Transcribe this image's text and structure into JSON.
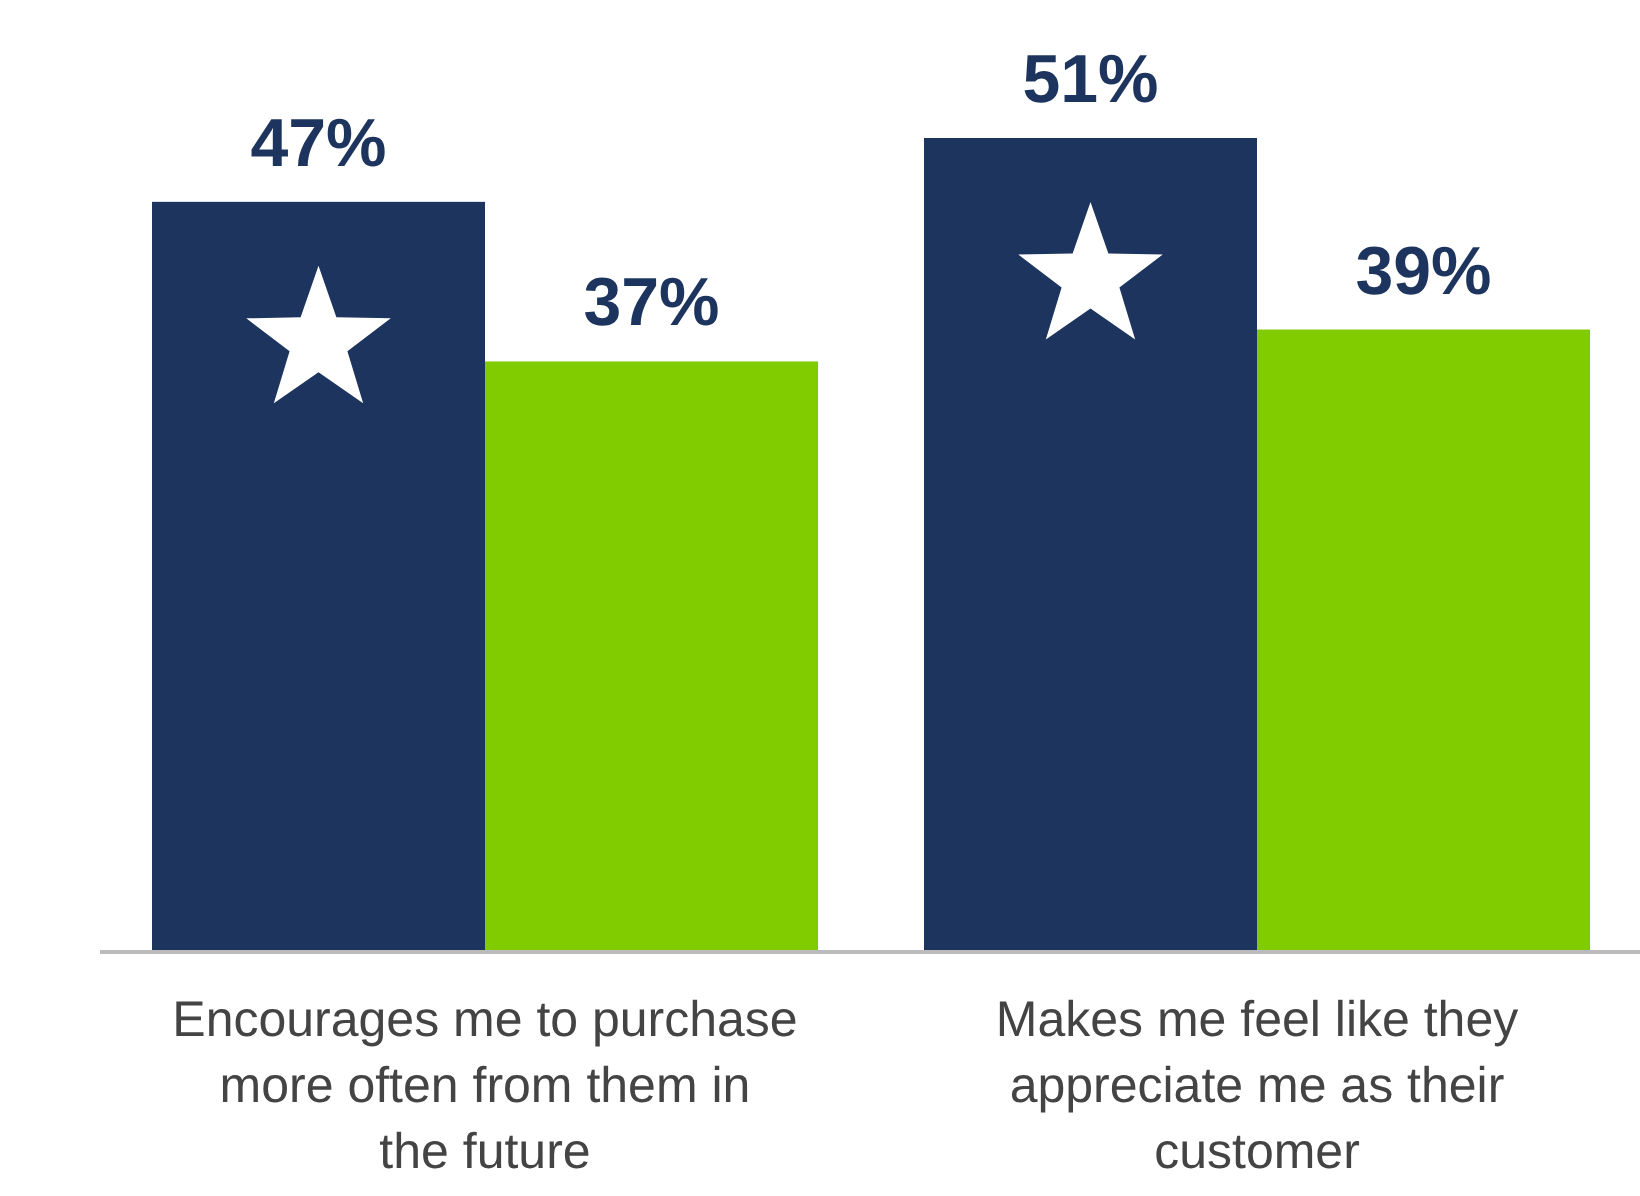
{
  "chart_data": {
    "type": "bar",
    "categories": [
      "Encourages me to purchase more often from them in the future",
      "Makes me feel like they appreciate me as their customer"
    ],
    "series": [
      {
        "color": "#1d355e",
        "values": [
          47,
          51
        ],
        "value_labels": [
          "47%",
          "51%"
        ]
      },
      {
        "color": "#80cc00",
        "values": [
          37,
          39
        ],
        "value_labels": [
          "37%",
          "39%"
        ]
      }
    ]
  }
}
